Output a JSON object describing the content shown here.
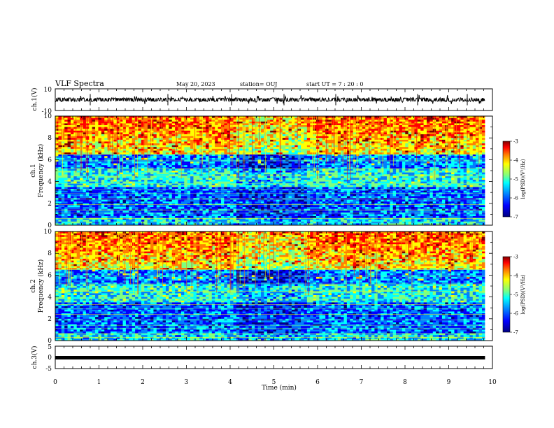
{
  "header": {
    "title": "VLF Spectra",
    "date": "May 20, 2023",
    "station": "station= OUJ",
    "start": "start  UT =   7 : 20 : 0"
  },
  "chart_data": [
    {
      "type": "line",
      "name": "ch1-waveform",
      "ylabel": "ch.1(V)",
      "ylim": [
        -10,
        10
      ],
      "yticks": [
        "10",
        "-10"
      ],
      "xlim": [
        0,
        10
      ],
      "baseline": 0
    },
    {
      "type": "heatmap",
      "name": "ch1-spectrogram",
      "ylabel_line1": "ch.1",
      "ylabel_line2": "Frequency (kHz)",
      "ylim": [
        0,
        10
      ],
      "yticks": [
        "0",
        "2",
        "4",
        "6",
        "8",
        "10"
      ],
      "xlim": [
        0,
        9.83
      ],
      "colorbar": {
        "label": "log(PSD)(V²/Hz)",
        "ticks": [
          "-3",
          "-4",
          "-5",
          "-6",
          "-7"
        ],
        "range": [
          -7,
          -3
        ]
      },
      "colors": [
        "#00007f",
        "#0000ff",
        "#007fff",
        "#00ffff",
        "#7fff7f",
        "#ffff00",
        "#ff7f00",
        "#ff0000",
        "#7f0000"
      ]
    },
    {
      "type": "heatmap",
      "name": "ch2-spectrogram",
      "ylabel_line1": "ch.2",
      "ylabel_line2": "Frequency (kHz)",
      "ylim": [
        0,
        10
      ],
      "yticks": [
        "0",
        "2",
        "4",
        "6",
        "8",
        "10"
      ],
      "xlim": [
        0,
        9.83
      ],
      "colorbar": {
        "label": "log(PSD)(V²/Hz)",
        "ticks": [
          "-3",
          "-4",
          "-5",
          "-6",
          "-7"
        ],
        "range": [
          -7,
          -3
        ]
      },
      "colors": [
        "#00007f",
        "#0000ff",
        "#007fff",
        "#00ffff",
        "#7fff7f",
        "#ffff00",
        "#ff7f00",
        "#ff0000",
        "#7f0000"
      ]
    },
    {
      "type": "line",
      "name": "ch3-waveform",
      "ylabel": "ch.3(V)",
      "ylim": [
        -5,
        5
      ],
      "yticks": [
        "5",
        "0",
        "-5"
      ],
      "xlim": [
        0,
        10
      ],
      "baseline": 0
    }
  ],
  "xaxis": {
    "label": "Time (min)",
    "ticks": [
      "0",
      "1",
      "2",
      "3",
      "4",
      "5",
      "6",
      "7",
      "8",
      "9",
      "10"
    ]
  }
}
